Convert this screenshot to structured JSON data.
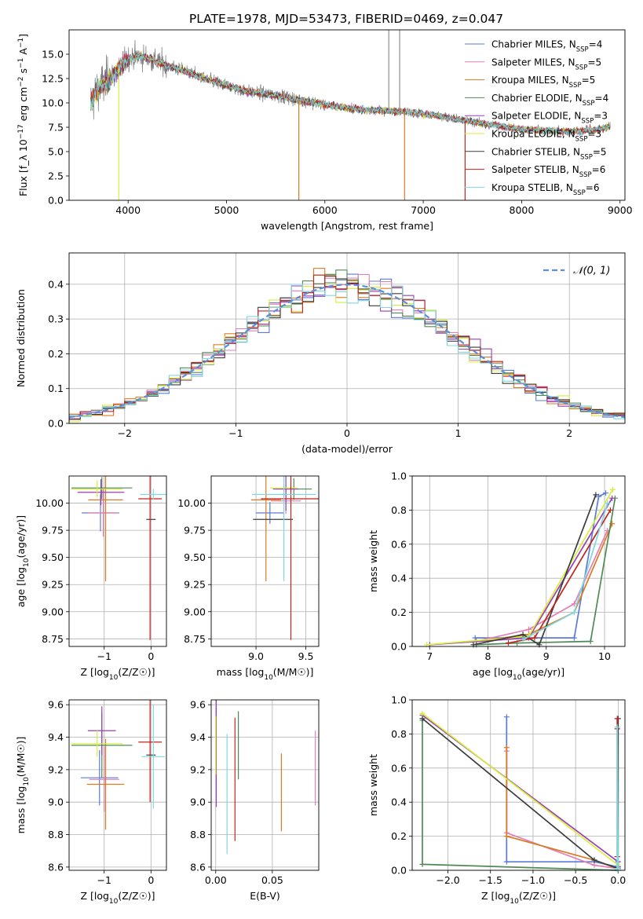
{
  "figure": {
    "title": "PLATE=1978, MJD=53473, FIBERID=0469, z=0.047"
  },
  "colors": {
    "chabrier_miles": "#5b7bd6",
    "salpeter_miles": "#e37fb7",
    "kroupa_miles": "#dd7a22",
    "chabrier_elodie": "#4f8a55",
    "salpeter_elodie": "#9b3fb4",
    "kroupa_elodie": "#d6ee3a",
    "chabrier_stelib": "#3c3c3c",
    "salpeter_stelib": "#c3231d",
    "kroupa_stelib": "#7fd8e0",
    "data": "#7a7a7a",
    "normal": "#5b8fd6"
  },
  "chart_data": [
    {
      "id": "spectrum",
      "type": "line",
      "title": "PLATE=1978, MJD=53473, FIBERID=0469, z=0.047",
      "xlabel": "wavelength [Angstrom, rest frame]",
      "ylabel": "Flux [f_λ 10^-17 erg cm^-2 s^-1 A^-1]",
      "xlim": [
        3400,
        9050
      ],
      "ylim": [
        0,
        17.5
      ],
      "xticks": [
        4000,
        5000,
        6000,
        7000,
        8000,
        9000
      ],
      "yticks": [
        0.0,
        2.5,
        5.0,
        7.5,
        10.0,
        12.5,
        15.0
      ],
      "legend_position": "upper right",
      "series": [
        {
          "name": "Chabrier MILES, N_SSP=4",
          "color_key": "chabrier_miles"
        },
        {
          "name": "Salpeter MILES, N_SSP=5",
          "color_key": "salpeter_miles"
        },
        {
          "name": "Kroupa MILES, N_SSP=5",
          "color_key": "kroupa_miles"
        },
        {
          "name": "Chabrier ELODIE, N_SSP=4",
          "color_key": "chabrier_elodie"
        },
        {
          "name": "Salpeter ELODIE, N_SSP=3",
          "color_key": "salpeter_elodie"
        },
        {
          "name": "Kroupa ELODIE, N_SSP=3",
          "color_key": "kroupa_elodie"
        },
        {
          "name": "Chabrier STELIB, N_SSP=5",
          "color_key": "chabrier_stelib"
        },
        {
          "name": "Salpeter STELIB, N_SSP=6",
          "color_key": "salpeter_stelib"
        },
        {
          "name": "Kroupa STELIB, N_SSP=6",
          "color_key": "kroupa_stelib"
        }
      ],
      "continuum_x": [
        3620,
        3700,
        3800,
        3900,
        4000,
        4100,
        4200,
        4400,
        4600,
        4800,
        5000,
        5200,
        5400,
        5600,
        5800,
        6000,
        6200,
        6400,
        6600,
        6800,
        7000,
        7200,
        7400,
        7600,
        7800,
        8000,
        8200,
        8400,
        8600,
        8800,
        8900
      ],
      "continuum_y": [
        10.0,
        11.5,
        12.3,
        13.5,
        14.6,
        14.8,
        14.6,
        13.8,
        13.2,
        12.4,
        11.8,
        11.2,
        10.9,
        10.6,
        10.2,
        9.8,
        9.5,
        9.3,
        9.2,
        9.1,
        8.9,
        8.6,
        8.2,
        7.9,
        7.6,
        7.3,
        7.2,
        7.1,
        7.1,
        7.3,
        7.6
      ],
      "spikes_down": [
        {
          "x": 3905,
          "y": 0.0,
          "color_key": "kroupa_elodie"
        },
        {
          "x": 5735,
          "y": 0.0,
          "color_key": "kroupa_miles"
        },
        {
          "x": 6810,
          "y": 0.0,
          "color_key": "kroupa_miles"
        },
        {
          "x": 7425,
          "y": 0.0,
          "color_key": "salpeter_stelib"
        }
      ],
      "spikes_up": [
        {
          "x": 6650,
          "y": 17.5
        },
        {
          "x": 6760,
          "y": 17.5
        }
      ]
    },
    {
      "id": "residuals",
      "type": "histogram",
      "xlabel": "(data-model)/error",
      "ylabel": "Normed distribution",
      "xlim": [
        -2.5,
        2.5
      ],
      "ylim": [
        0,
        0.49
      ],
      "xticks": [
        -2,
        -1,
        0,
        1,
        2
      ],
      "yticks": [
        0.0,
        0.1,
        0.2,
        0.3,
        0.4
      ],
      "legend_position": "upper right",
      "legend": "𝒩(0, 1)",
      "bin_width": 0.1,
      "grid": true
    },
    {
      "id": "age_vs_Z",
      "type": "errorbar",
      "xlabel": "Z [log10(Z/Z☉)]",
      "ylabel": "age [log10(age/yr)]",
      "xlim": [
        -1.75,
        0.33
      ],
      "ylim": [
        8.68,
        10.25
      ],
      "xticks": [
        -1,
        0
      ],
      "yticks": [
        8.75,
        9.0,
        9.25,
        9.5,
        9.75,
        10.0
      ],
      "points": [
        {
          "x": -1.08,
          "y": 9.91,
          "xerr": 0.4,
          "yerr": 0.17,
          "color_key": "chabrier_miles"
        },
        {
          "x": -1.02,
          "y": 9.91,
          "xerr": 0.32,
          "yerr": 0.22,
          "color_key": "salpeter_miles"
        },
        {
          "x": -0.97,
          "y": 10.03,
          "xerr": 0.37,
          "yerr": 0.75,
          "color_key": "kroupa_miles"
        },
        {
          "x": -1.05,
          "y": 10.14,
          "xerr": 0.65,
          "yerr": 0.1,
          "color_key": "chabrier_elodie"
        },
        {
          "x": -1.07,
          "y": 10.1,
          "xerr": 0.5,
          "yerr": 0.12,
          "color_key": "salpeter_elodie"
        },
        {
          "x": -1.15,
          "y": 10.13,
          "xerr": 0.55,
          "yerr": 0.08,
          "color_key": "kroupa_elodie"
        },
        {
          "x": 0.0,
          "y": 9.85,
          "xerr": 0.1,
          "yerr": 0.0,
          "color_key": "chabrier_stelib"
        },
        {
          "x": -0.02,
          "y": 10.04,
          "xerr": 0.25,
          "yerr": 1.3,
          "color_key": "salpeter_stelib"
        },
        {
          "x": 0.05,
          "y": 10.08,
          "xerr": 0.28,
          "yerr": 0.05,
          "color_key": "kroupa_stelib"
        }
      ]
    },
    {
      "id": "age_vs_mass",
      "type": "errorbar",
      "xlabel": "mass [log10(M/M☉)]",
      "ylabel": "",
      "xlim": [
        8.55,
        9.63
      ],
      "ylim": [
        8.68,
        10.25
      ],
      "xticks": [
        9.0,
        9.5
      ],
      "yticks": [
        8.75,
        9.0,
        9.25,
        9.5,
        9.75,
        10.0
      ],
      "points": [
        {
          "x": 9.14,
          "y": 9.91,
          "xerr": 0.14,
          "yerr": 0.1,
          "color_key": "chabrier_miles"
        },
        {
          "x": 9.3,
          "y": 10.02,
          "xerr": 0.15,
          "yerr": 0.12,
          "color_key": "salpeter_miles"
        },
        {
          "x": 9.1,
          "y": 10.03,
          "xerr": 0.15,
          "yerr": 0.75,
          "color_key": "kroupa_miles"
        },
        {
          "x": 9.38,
          "y": 10.13,
          "xerr": 0.18,
          "yerr": 0.1,
          "color_key": "chabrier_elodie"
        },
        {
          "x": 9.3,
          "y": 10.13,
          "xerr": 0.13,
          "yerr": 0.2,
          "color_key": "salpeter_elodie"
        },
        {
          "x": 9.28,
          "y": 10.14,
          "xerr": 0.14,
          "yerr": 0.05,
          "color_key": "kroupa_elodie"
        },
        {
          "x": 9.17,
          "y": 9.85,
          "xerr": 0.2,
          "yerr": 0.0,
          "color_key": "chabrier_stelib"
        },
        {
          "x": 9.35,
          "y": 10.04,
          "xerr": 0.3,
          "yerr": 1.3,
          "color_key": "salpeter_stelib"
        },
        {
          "x": 9.28,
          "y": 10.08,
          "xerr": 0.32,
          "yerr": 0.8,
          "color_key": "kroupa_stelib"
        }
      ]
    },
    {
      "id": "massweight_vs_age",
      "type": "line",
      "xlabel": "age [log10(age/yr)]",
      "ylabel": "mass weight",
      "xlim": [
        6.7,
        10.35
      ],
      "ylim": [
        0,
        1.0
      ],
      "xticks": [
        7,
        8,
        9,
        10
      ],
      "yticks": [
        0.0,
        0.2,
        0.4,
        0.6,
        0.8,
        1.0
      ],
      "series": [
        {
          "color_key": "chabrier_miles",
          "x": [
            7.78,
            9.48,
            9.9,
            10.02
          ],
          "y": [
            0.05,
            0.05,
            0.88,
            0.9
          ]
        },
        {
          "color_key": "salpeter_miles",
          "x": [
            7.8,
            8.7,
            9.48,
            10.05
          ],
          "y": [
            0.03,
            0.1,
            0.25,
            0.68
          ]
        },
        {
          "color_key": "kroupa_miles",
          "x": [
            7.8,
            8.7,
            9.48,
            10.13
          ],
          "y": [
            0.03,
            0.07,
            0.2,
            0.72
          ]
        },
        {
          "color_key": "chabrier_elodie",
          "x": [
            7.8,
            8.5,
            9.76,
            10.18
          ],
          "y": [
            0.01,
            0.02,
            0.03,
            0.87
          ]
        },
        {
          "color_key": "salpeter_elodie",
          "x": [
            7.0,
            8.7,
            10.13
          ],
          "y": [
            0.01,
            0.05,
            0.87
          ]
        },
        {
          "color_key": "kroupa_elodie",
          "x": [
            6.95,
            8.7,
            10.14
          ],
          "y": [
            0.01,
            0.06,
            0.92
          ]
        },
        {
          "color_key": "chabrier_stelib",
          "x": [
            7.75,
            8.6,
            8.88,
            9.85
          ],
          "y": [
            0.01,
            0.07,
            0.01,
            0.89
          ]
        },
        {
          "color_key": "salpeter_stelib",
          "x": [
            8.35,
            8.8,
            10.1
          ],
          "y": [
            0.02,
            0.05,
            0.8
          ]
        },
        {
          "color_key": "kroupa_stelib",
          "x": [
            8.6,
            9.48,
            10.05
          ],
          "y": [
            0.04,
            0.2,
            0.84
          ]
        }
      ]
    },
    {
      "id": "mass_vs_Z",
      "type": "errorbar",
      "xlabel": "Z [log10(Z/Z☉)]",
      "ylabel": "mass [log10(M/M☉)]",
      "xlim": [
        -1.75,
        0.33
      ],
      "ylim": [
        8.58,
        9.63
      ],
      "xticks": [
        -1,
        0
      ],
      "yticks": [
        8.6,
        8.8,
        9.0,
        9.2,
        9.4,
        9.6
      ],
      "points": [
        {
          "x": -1.1,
          "y": 9.15,
          "xerr": 0.4,
          "yerr": 0.17,
          "color_key": "chabrier_miles"
        },
        {
          "x": -1.0,
          "y": 9.14,
          "xerr": 0.32,
          "yerr": 0.2,
          "color_key": "salpeter_miles"
        },
        {
          "x": -0.97,
          "y": 9.11,
          "xerr": 0.4,
          "yerr": 0.28,
          "color_key": "kroupa_miles"
        },
        {
          "x": -1.05,
          "y": 9.35,
          "xerr": 0.65,
          "yerr": 0.2,
          "color_key": "chabrier_elodie"
        },
        {
          "x": -1.05,
          "y": 9.44,
          "xerr": 0.3,
          "yerr": 0.15,
          "color_key": "salpeter_elodie"
        },
        {
          "x": -1.15,
          "y": 9.36,
          "xerr": 0.55,
          "yerr": 0.08,
          "color_key": "kroupa_elodie"
        },
        {
          "x": 0.0,
          "y": 9.29,
          "xerr": 0.1,
          "yerr": 0.0,
          "color_key": "chabrier_stelib"
        },
        {
          "x": -0.02,
          "y": 9.37,
          "xerr": 0.25,
          "yerr": 0.37,
          "color_key": "salpeter_stelib"
        },
        {
          "x": 0.05,
          "y": 9.28,
          "xerr": 0.25,
          "yerr": 0.32,
          "color_key": "kroupa_stelib"
        }
      ]
    },
    {
      "id": "mass_vs_ebv",
      "type": "errorbar",
      "xlabel": "E(B-V)",
      "ylabel": "",
      "xlim": [
        -0.004,
        0.091
      ],
      "ylim": [
        8.58,
        9.63
      ],
      "xticks": [
        0.0,
        0.05
      ],
      "yticks": [
        8.6,
        8.8,
        9.0,
        9.2,
        9.4,
        9.6
      ],
      "points": [
        {
          "x": 0.0005,
          "y": 9.3,
          "xerr": 0,
          "yerr": 0.33,
          "color_key": "salpeter_elodie"
        },
        {
          "x": 0.0,
          "y": 9.35,
          "xerr": 0,
          "yerr": 0.18,
          "color_key": "kroupa_elodie"
        },
        {
          "x": 0.01,
          "y": 9.05,
          "xerr": 0,
          "yerr": 0.37,
          "color_key": "kroupa_stelib"
        },
        {
          "x": 0.017,
          "y": 9.14,
          "xerr": 0,
          "yerr": 0.38,
          "color_key": "salpeter_stelib"
        },
        {
          "x": 0.02,
          "y": 9.35,
          "xerr": 0,
          "yerr": 0.21,
          "color_key": "chabrier_elodie"
        },
        {
          "x": 0.058,
          "y": 9.06,
          "xerr": 0,
          "yerr": 0.24,
          "color_key": "kroupa_miles"
        },
        {
          "x": 0.088,
          "y": 9.21,
          "xerr": 0,
          "yerr": 0.23,
          "color_key": "salpeter_miles"
        }
      ]
    },
    {
      "id": "massweight_vs_Z",
      "type": "line",
      "xlabel": "Z [log10(Z/Z☉)]",
      "ylabel": "mass weight",
      "xlim": [
        -2.42,
        0.08
      ],
      "ylim": [
        0,
        1.0
      ],
      "xticks": [
        -2.0,
        -1.5,
        -1.0,
        -0.5,
        0.0
      ],
      "yticks": [
        0.0,
        0.2,
        0.4,
        0.6,
        0.8,
        1.0
      ],
      "series": [
        {
          "color_key": "chabrier_miles",
          "x": [
            -1.31,
            -1.31,
            -0.28,
            0.0
          ],
          "y": [
            0.9,
            0.05,
            0.05,
            0.02
          ]
        },
        {
          "color_key": "salpeter_miles",
          "x": [
            -1.31,
            -1.31,
            -0.28,
            0.0
          ],
          "y": [
            0.7,
            0.22,
            0.03,
            0.01
          ]
        },
        {
          "color_key": "kroupa_miles",
          "x": [
            -1.31,
            -1.31,
            -0.28,
            -0.01
          ],
          "y": [
            0.72,
            0.2,
            0.06,
            0.01
          ]
        },
        {
          "color_key": "chabrier_elodie",
          "x": [
            -2.3,
            -2.3,
            0.0
          ],
          "y": [
            0.88,
            0.035,
            0.0
          ]
        },
        {
          "color_key": "salpeter_elodie",
          "x": [
            -2.3,
            0.0,
            0.0
          ],
          "y": [
            0.91,
            0.05,
            0.02
          ]
        },
        {
          "color_key": "kroupa_elodie",
          "x": [
            -2.3,
            0.0
          ],
          "y": [
            0.92,
            0.03
          ]
        },
        {
          "color_key": "chabrier_stelib",
          "x": [
            -2.3,
            -0.28,
            0.0,
            0.0
          ],
          "y": [
            0.89,
            0.06,
            0.01,
            0.89
          ]
        },
        {
          "color_key": "salpeter_stelib",
          "x": [
            -0.01,
            -0.01,
            -0.01
          ],
          "y": [
            0.08,
            0.83,
            0.89
          ]
        },
        {
          "color_key": "kroupa_stelib",
          "x": [
            -0.01,
            -0.01,
            0.0
          ],
          "y": [
            0.01,
            0.84,
            0.01
          ]
        }
      ]
    }
  ]
}
